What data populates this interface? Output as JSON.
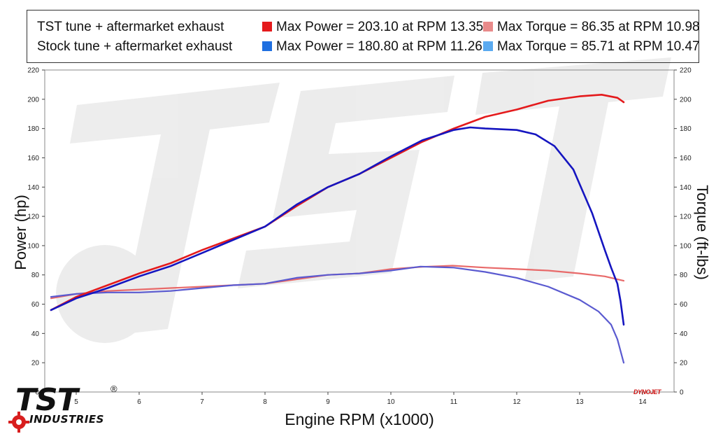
{
  "legend": {
    "rows": [
      {
        "label": "TST tune + aftermarket exhaust",
        "power_entry": "Max Power = 203.10 at RPM 13.35",
        "power_color": "#e41a1c",
        "torque_entry": "Max Torque = 86.35 at RPM 10.98",
        "torque_color": "#e88a8a"
      },
      {
        "label": "Stock tune + aftermarket exhaust",
        "power_entry": "Max Power = 180.80 at RPM 11.26",
        "power_color": "#1f6fe0",
        "torque_entry": "Max Torque = 85.71 at RPM 10.47",
        "torque_color": "#5aaaf0"
      }
    ]
  },
  "logo": {
    "main": "TST",
    "sub": "INDUSTRIES",
    "reg": "®"
  },
  "dynojet": "DYNOJET",
  "chart_data": {
    "type": "line",
    "xlabel": "Engine RPM (x1000)",
    "ylabel": "Power (hp)",
    "y2label": "Torque (ft-lbs)",
    "xlim": [
      4.5,
      14.5
    ],
    "ylim": [
      0,
      220
    ],
    "y2lim": [
      0,
      220
    ],
    "xticks": [
      5,
      6,
      7,
      8,
      9,
      10,
      11,
      12,
      13,
      14
    ],
    "yticks": [
      0,
      20,
      40,
      60,
      80,
      100,
      120,
      140,
      160,
      180,
      200,
      220
    ],
    "grid": false,
    "series": [
      {
        "name": "TST tune + aftermarket exhaust",
        "measure": "power",
        "axis": "left",
        "color": "#e41a1c",
        "x": [
          4.6,
          5.0,
          5.5,
          6.0,
          6.5,
          7.0,
          7.5,
          8.0,
          8.5,
          9.0,
          9.5,
          10.0,
          10.5,
          11.0,
          11.5,
          12.0,
          12.5,
          13.0,
          13.35,
          13.6,
          13.7
        ],
        "y": [
          56,
          65,
          73,
          81,
          88,
          97,
          105,
          113,
          127,
          140,
          149,
          160,
          171,
          180,
          188,
          193,
          199,
          202,
          203.1,
          201,
          198
        ]
      },
      {
        "name": "Stock tune + aftermarket exhaust",
        "measure": "power",
        "axis": "left",
        "color": "#1515c0",
        "x": [
          4.6,
          5.0,
          5.5,
          6.0,
          6.5,
          7.0,
          7.5,
          8.0,
          8.5,
          9.0,
          9.5,
          10.0,
          10.5,
          11.0,
          11.26,
          11.5,
          12.0,
          12.3,
          12.6,
          12.9,
          13.2,
          13.4,
          13.5,
          13.6,
          13.65,
          13.7
        ],
        "y": [
          56,
          64,
          71,
          79,
          86,
          95,
          104,
          113,
          128,
          140,
          149,
          161,
          172,
          179,
          180.8,
          180,
          179,
          176,
          168,
          152,
          122,
          97,
          85,
          74,
          62,
          46
        ]
      },
      {
        "name": "TST tune + aftermarket exhaust",
        "measure": "torque",
        "axis": "right",
        "color": "#e86a6a",
        "x": [
          4.6,
          5.0,
          5.5,
          6.0,
          6.5,
          7.0,
          7.5,
          8.0,
          8.5,
          9.0,
          9.5,
          10.0,
          10.5,
          10.98,
          11.5,
          12.0,
          12.5,
          13.0,
          13.4,
          13.7
        ],
        "y": [
          64,
          67,
          69,
          70,
          71,
          72,
          73,
          74,
          77,
          80,
          81,
          84,
          85.5,
          86.35,
          85,
          84,
          83,
          81,
          79,
          76
        ]
      },
      {
        "name": "Stock tune + aftermarket exhaust",
        "measure": "torque",
        "axis": "right",
        "color": "#5a5ad0",
        "x": [
          4.6,
          5.0,
          5.5,
          6.0,
          6.5,
          7.0,
          7.5,
          8.0,
          8.5,
          9.0,
          9.5,
          10.0,
          10.47,
          11.0,
          11.5,
          12.0,
          12.5,
          13.0,
          13.3,
          13.5,
          13.6,
          13.7
        ],
        "y": [
          65,
          67,
          68,
          68,
          69,
          71,
          73,
          74,
          78,
          80,
          81,
          83,
          85.7,
          85,
          82,
          78,
          72,
          63,
          55,
          46,
          36,
          20
        ]
      }
    ]
  }
}
